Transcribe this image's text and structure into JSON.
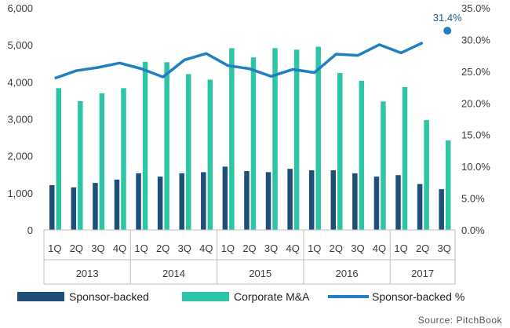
{
  "chart_data": {
    "type": "bar",
    "categories": [
      "1Q",
      "2Q",
      "3Q",
      "4Q",
      "1Q",
      "2Q",
      "3Q",
      "4Q",
      "1Q",
      "2Q",
      "3Q",
      "4Q",
      "1Q",
      "2Q",
      "3Q",
      "4Q",
      "1Q",
      "2Q",
      "3Q"
    ],
    "year_groups": [
      {
        "label": "2013",
        "count": 4
      },
      {
        "label": "2014",
        "count": 4
      },
      {
        "label": "2015",
        "count": 4
      },
      {
        "label": "2016",
        "count": 4
      },
      {
        "label": "2017",
        "count": 3
      }
    ],
    "series": [
      {
        "name": "Sponsor-backed",
        "type": "bar",
        "axis": "left",
        "color": "#1f4e79",
        "values": [
          1210,
          1150,
          1270,
          1360,
          1530,
          1440,
          1530,
          1560,
          1710,
          1590,
          1560,
          1650,
          1610,
          1610,
          1530,
          1440,
          1480,
          1240,
          1100
        ]
      },
      {
        "name": "Corporate M&A",
        "type": "bar",
        "axis": "left",
        "color": "#2ec4a6",
        "values": [
          3830,
          3480,
          3690,
          3830,
          4540,
          4530,
          4210,
          4060,
          4910,
          4660,
          4910,
          4870,
          4950,
          4240,
          4030,
          3470,
          3860,
          2970,
          2420
        ]
      },
      {
        "name": "Sponsor-backed %",
        "type": "line",
        "axis": "right",
        "color": "#1f7fc0",
        "values": [
          23.9,
          25.1,
          25.6,
          26.3,
          25.4,
          24.1,
          26.8,
          27.8,
          25.9,
          25.4,
          24.2,
          25.3,
          24.8,
          27.7,
          27.5,
          29.2,
          27.9,
          29.5,
          31.4
        ]
      }
    ],
    "y_left": {
      "min": 0,
      "max": 6000,
      "ticks": [
        "0",
        "1,000",
        "2,000",
        "3,000",
        "4,000",
        "5,000",
        "6,000"
      ]
    },
    "y_right": {
      "min": 0,
      "max": 35,
      "ticks": [
        "0.0%",
        "5.0%",
        "10.0%",
        "15.0%",
        "20.0%",
        "25.0%",
        "30.0%",
        "35.0%"
      ]
    },
    "annotation": "31.4%",
    "legend_position": "bottom",
    "grid": false
  },
  "source_text": "Source: PitchBook"
}
